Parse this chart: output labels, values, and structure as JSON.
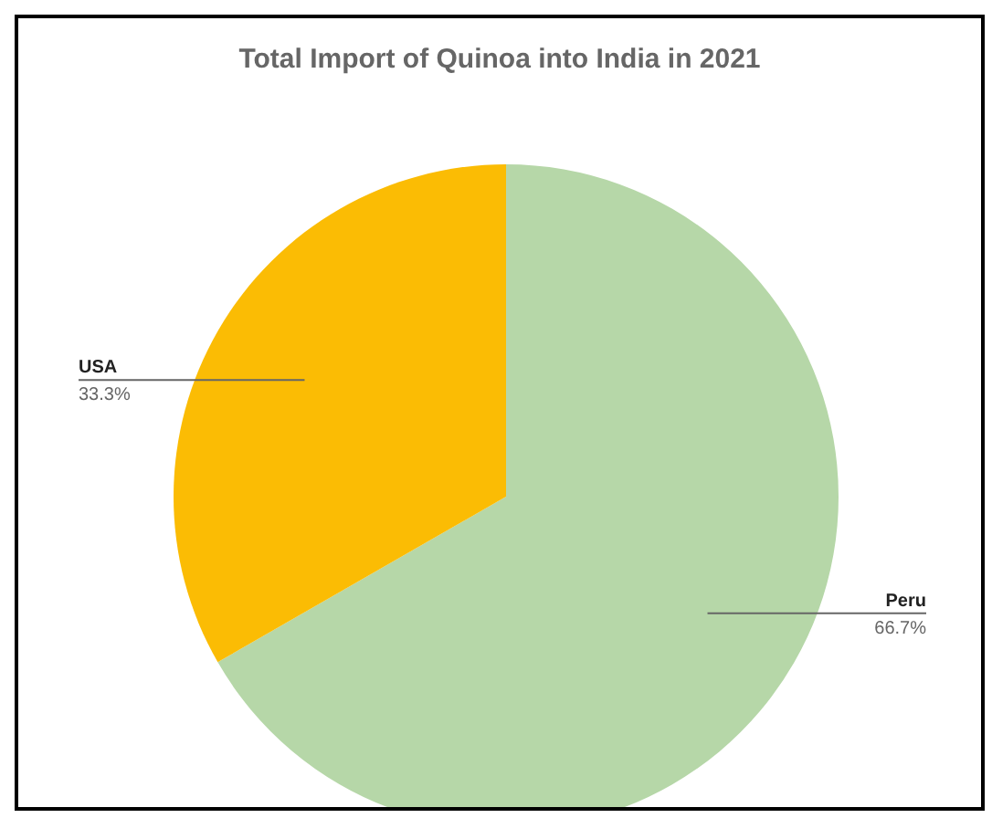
{
  "chart_data": {
    "type": "pie",
    "title": "Total Import of Quinoa into India in 2021",
    "categories": [
      "Peru",
      "USA"
    ],
    "values": [
      66.7,
      33.3
    ],
    "value_labels": [
      "66.7%",
      "33.3%"
    ],
    "colors": [
      "#b6d7a8",
      "#fbbc04"
    ]
  }
}
